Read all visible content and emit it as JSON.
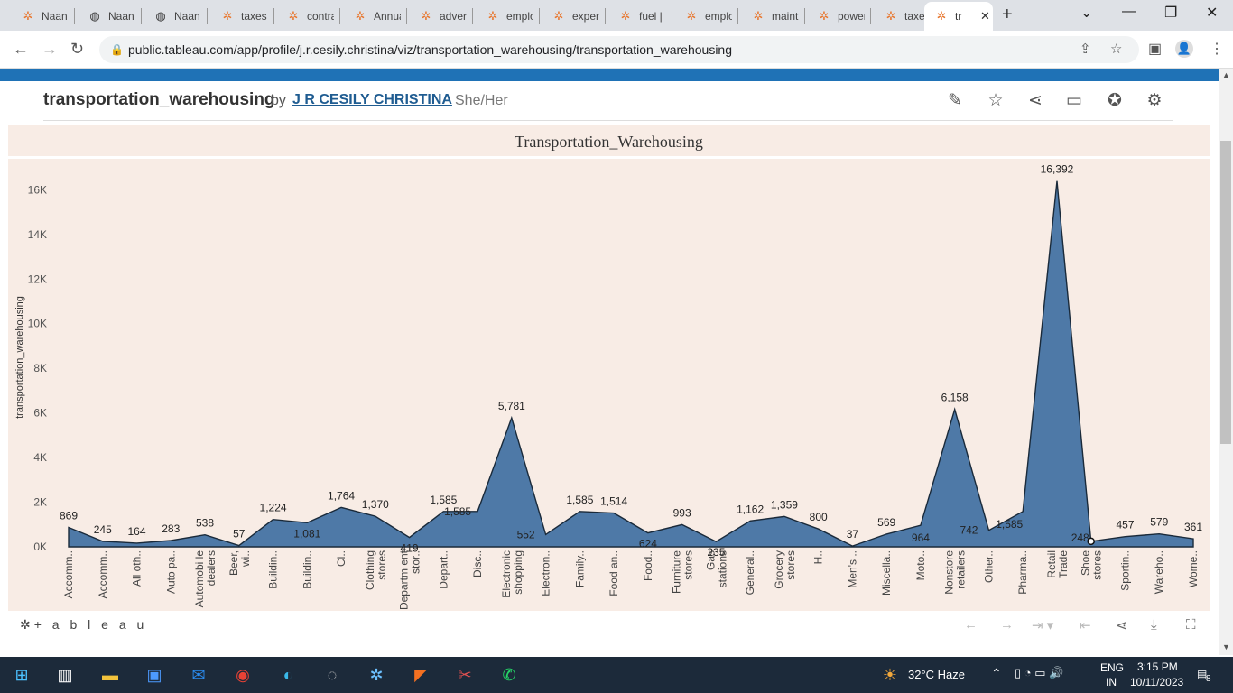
{
  "browser": {
    "tabs": [
      {
        "label": "Naan",
        "icon": "tableau-icon"
      },
      {
        "label": "Naan",
        "icon": "globe-icon"
      },
      {
        "label": "Naan",
        "icon": "globe-icon"
      },
      {
        "label": "taxes",
        "icon": "tableau-icon"
      },
      {
        "label": "contra",
        "icon": "tableau-icon"
      },
      {
        "label": "Annua",
        "icon": "tableau-icon"
      },
      {
        "label": "advert",
        "icon": "tableau-icon"
      },
      {
        "label": "emplo",
        "icon": "tableau-icon"
      },
      {
        "label": "expen",
        "icon": "tableau-icon"
      },
      {
        "label": "fuel |",
        "icon": "tableau-icon"
      },
      {
        "label": "emplo",
        "icon": "tableau-icon"
      },
      {
        "label": "maint",
        "icon": "tableau-icon"
      },
      {
        "label": "power",
        "icon": "tableau-icon"
      },
      {
        "label": "taxes",
        "icon": "tableau-icon"
      }
    ],
    "active_tab": {
      "label": "tr",
      "icon": "tableau-icon"
    },
    "url": "public.tableau.com/app/profile/j.r.cesily.christina/viz/transportation_warehousing/transportation_warehousing"
  },
  "viz": {
    "title": "transportation_warehousing",
    "by": "by",
    "author": "J R CESILY CHRISTINA",
    "pronouns": "She/Her"
  },
  "sheet": {
    "title": "Transportation_Warehousing"
  },
  "chart_data": {
    "type": "area",
    "title": "Transportation_Warehousing",
    "ylabel": "transportation_warehousing",
    "ylim": [
      0,
      16500
    ],
    "yticks": [
      "0K",
      "2K",
      "4K",
      "6K",
      "8K",
      "10K",
      "12K",
      "14K",
      "16K"
    ],
    "categories": [
      "Accomm..",
      "Accomm..",
      "All oth..",
      "Auto pa..",
      "Automobi le dealers",
      "Beer, wi..",
      "Buildin..",
      "Buildin..",
      "Cl..",
      "Clothing stores",
      "Departm ent stor..",
      "Depart..",
      "Disc..",
      "Electronic shopping",
      "Electron..",
      "Family..",
      "Food an..",
      "Food..",
      "Furniture stores",
      "Gas stations",
      "General..",
      "Grocery stores",
      "H..",
      "Men's ..",
      "Miscella..",
      "Moto..",
      "Nonstore retailers",
      "Other..",
      "Pharma..",
      "Retail Trade",
      "Shoe stores",
      "Sportin..",
      "Wareho..",
      "Wome.."
    ],
    "values": [
      869,
      245,
      164,
      283,
      538,
      57,
      1224,
      1081,
      1764,
      1370,
      419,
      1585,
      1585,
      5781,
      552,
      1585,
      1514,
      624,
      993,
      235,
      1162,
      1359,
      800,
      37,
      569,
      964,
      6158,
      742,
      1585,
      16392,
      248,
      457,
      579,
      361
    ],
    "labels": [
      "869",
      "245",
      "164",
      "283",
      "538",
      "57",
      "1,224",
      "1,081",
      "1,764",
      "1,370",
      "419",
      "1,585",
      "1,585",
      "5,781",
      "552",
      "1,585",
      "1,514",
      "624",
      "993",
      "235",
      "1,162",
      "1,359",
      "800",
      "37",
      "569",
      "964",
      "6,158",
      "742",
      "1,585",
      "16,392",
      "248",
      "457",
      "579",
      "361"
    ],
    "fill_color": "#4e79a7",
    "background": "#f8ece5"
  },
  "footer": {
    "logo": "+ a b l e a u"
  },
  "taskbar": {
    "weather": "32°C  Haze",
    "lang1": "ENG",
    "lang2": "IN",
    "time": "3:15 PM",
    "date": "10/11/2023",
    "notif": "8"
  }
}
